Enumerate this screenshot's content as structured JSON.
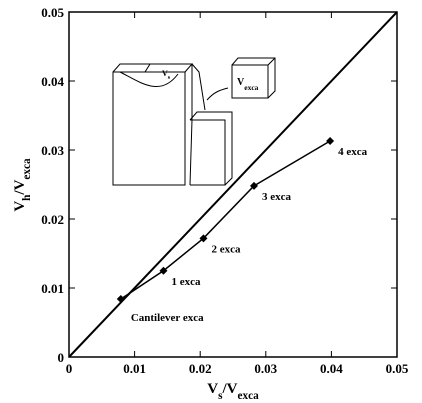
{
  "chart_data": {
    "type": "line",
    "xlabel": [
      "V",
      "s",
      "/V",
      "exca"
    ],
    "ylabel": [
      "V",
      "h",
      "/V",
      "exca"
    ],
    "x": [
      0.0079,
      0.0144,
      0.0205,
      0.0282,
      0.0398
    ],
    "series": [
      {
        "color": "#000000",
        "values": [
          0.0084,
          0.0125,
          0.0172,
          0.0248,
          0.0313
        ]
      }
    ],
    "point_labels": [
      "Cantilever exca",
      "1 exca",
      "2 exca",
      "3 exca",
      "4 exca"
    ],
    "xlim": [
      0,
      0.05
    ],
    "ylim": [
      0,
      0.05
    ],
    "xticks": [
      0,
      0.01,
      0.02,
      0.03,
      0.04,
      0.05
    ],
    "yticks": [
      0,
      0.01,
      0.02,
      0.03,
      0.04,
      0.05
    ],
    "inset_labels": [
      [
        "V",
        "s"
      ],
      [
        "V",
        "exca"
      ]
    ]
  }
}
